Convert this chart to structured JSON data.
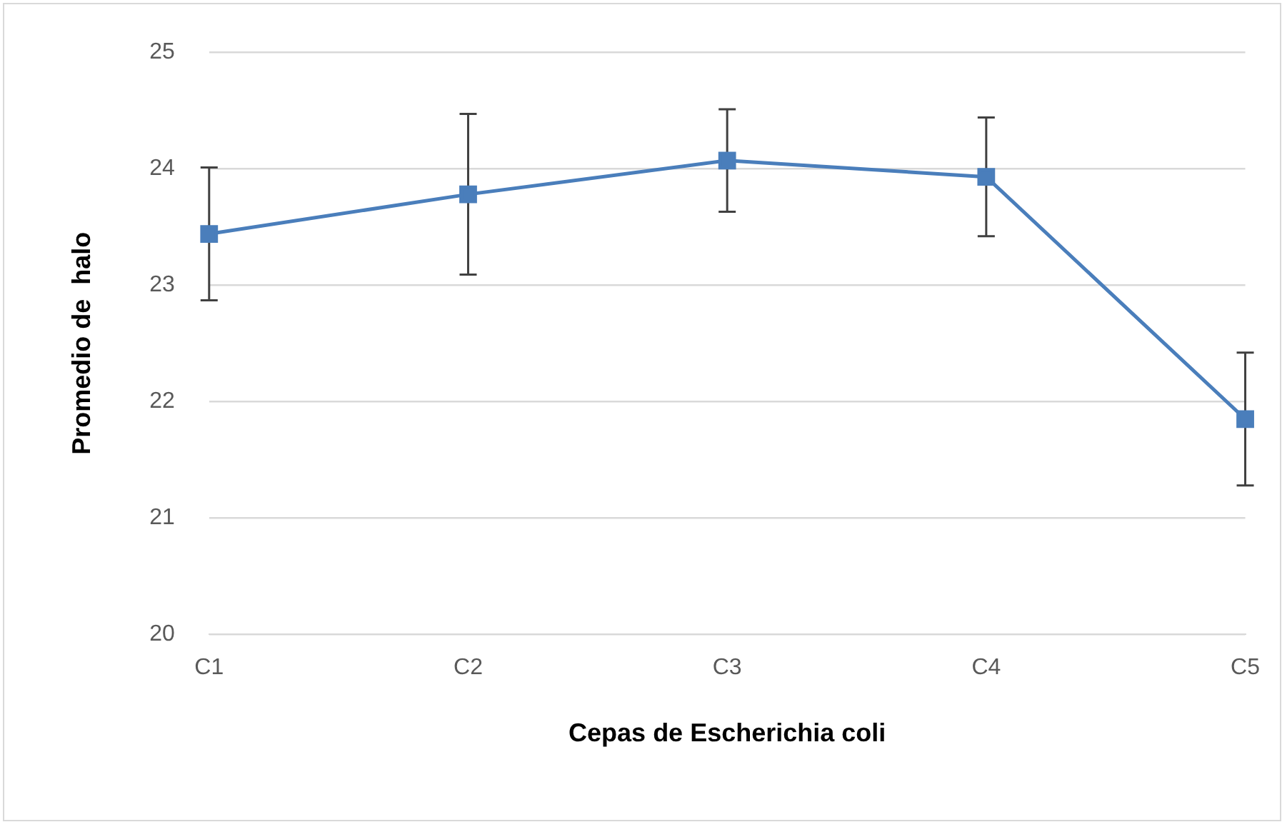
{
  "chart_data": {
    "type": "line",
    "xlabel": "Cepas de Escherichia coli",
    "ylabel": "Promedio de  halo",
    "categories": [
      "C1",
      "C2",
      "C3",
      "C4",
      "C5"
    ],
    "series": [
      {
        "color": "#4a7ebb",
        "values": [
          23.44,
          23.78,
          24.07,
          23.93,
          21.85
        ],
        "errors": [
          0.57,
          0.69,
          0.44,
          0.51,
          0.57
        ]
      }
    ],
    "ylim": [
      20,
      25
    ],
    "yticks": [
      20,
      21,
      22,
      23,
      24,
      25
    ],
    "grid": "y",
    "legend": false,
    "marker": "square",
    "line_style": "solid"
  }
}
